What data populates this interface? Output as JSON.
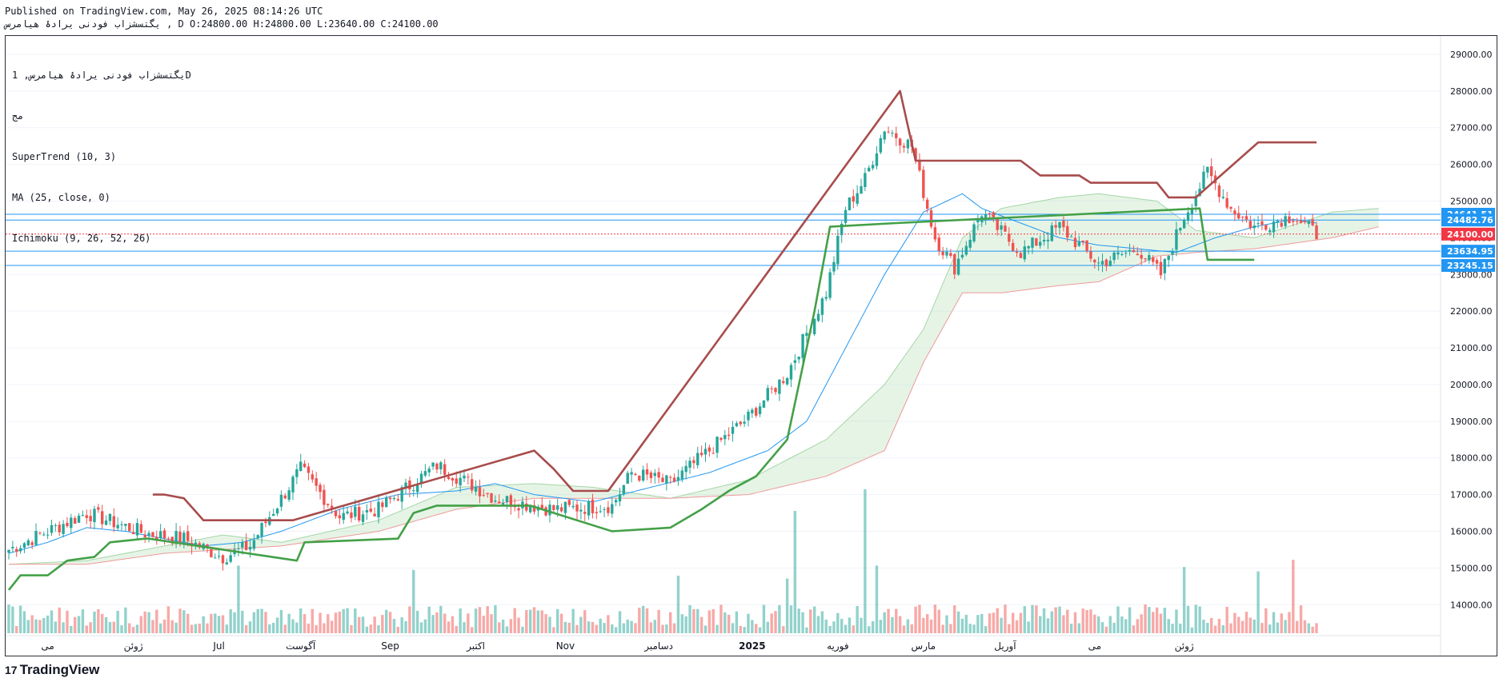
{
  "header": {
    "published": "Published on TradingView.com, May 26, 2025 08:14:26 UTC",
    "ohlc_line": "یگتسشزاب فودنی یرادۀ هیامرس , D O:24800.00 H:24800.00 L:23640.00 C:24100.00"
  },
  "legend": {
    "symbol": "یگتسشزاب فودنی یرادۀ هیامرس, 1D",
    "exchange": "مج",
    "supertrend": "SuperTrend (10, 3)",
    "ma": "MA (25, close, 0)",
    "ichimoku": "Ichimoku (9, 26, 52, 26)"
  },
  "brand": {
    "logo": "17",
    "name": "TradingView"
  },
  "colors": {
    "up": "#26a69a",
    "down": "#ef5350",
    "supertrend_up": "#43a047",
    "supertrend_down": "#a84c4c",
    "ma": "#2196f3",
    "hline": "#2196f3",
    "last_price": "#f23645",
    "cloud_bull": "#a5d6a7",
    "cloud_bear": "#ef9a9a"
  },
  "chart_data": {
    "type": "candlestick",
    "interval": "1D",
    "y_range": [
      13200,
      29500
    ],
    "y_ticks": [
      "29000.00",
      "28000.00",
      "27000.00",
      "26000.00",
      "25000.00",
      "24000.00",
      "23000.00",
      "22000.00",
      "21000.00",
      "20000.00",
      "19000.00",
      "18000.00",
      "17000.00",
      "16000.00",
      "15000.00",
      "14000.00"
    ],
    "x_labels": [
      "می",
      "ژوئن",
      "Jul",
      "آگوست",
      "Sep",
      "اکتبر",
      "Nov",
      "دسامبر",
      "2025",
      "فوریه",
      "مارس",
      "آوریل",
      "می",
      "ژوئن"
    ],
    "price_labels": [
      {
        "value": 24641.51,
        "text": "24641.51",
        "color": "#2196f3"
      },
      {
        "value": 24482.76,
        "text": "24482.76",
        "color": "#2196f3"
      },
      {
        "value": 24100.0,
        "text": "24100.00",
        "color": "#f23645"
      },
      {
        "value": 23634.95,
        "text": "23634.95",
        "color": "#2196f3"
      },
      {
        "value": 23245.15,
        "text": "23245.15",
        "color": "#2196f3"
      }
    ],
    "close_anchors": [
      [
        0,
        15500
      ],
      [
        20,
        16500
      ],
      [
        35,
        15950
      ],
      [
        45,
        15800
      ],
      [
        55,
        15300
      ],
      [
        62,
        15600
      ],
      [
        75,
        17700
      ],
      [
        85,
        16400
      ],
      [
        95,
        16600
      ],
      [
        110,
        17800
      ],
      [
        125,
        16900
      ],
      [
        140,
        16600
      ],
      [
        155,
        16700
      ],
      [
        160,
        17600
      ],
      [
        170,
        17300
      ],
      [
        180,
        18200
      ],
      [
        190,
        19100
      ],
      [
        200,
        20300
      ],
      [
        210,
        22500
      ],
      [
        215,
        24800
      ],
      [
        220,
        25600
      ],
      [
        225,
        27000
      ],
      [
        232,
        26500
      ],
      [
        238,
        24000
      ],
      [
        243,
        23200
      ],
      [
        250,
        24700
      ],
      [
        260,
        23600
      ],
      [
        270,
        24300
      ],
      [
        280,
        23300
      ],
      [
        290,
        23700
      ],
      [
        296,
        23000
      ],
      [
        302,
        24600
      ],
      [
        308,
        25800
      ],
      [
        314,
        24800
      ],
      [
        320,
        24300
      ],
      [
        330,
        24600
      ],
      [
        336,
        24100
      ]
    ],
    "volume_peaks": [
      {
        "index": 59,
        "value": 4.7
      },
      {
        "index": 104,
        "value": 4.4
      },
      {
        "index": 172,
        "value": 4.0
      },
      {
        "index": 200,
        "value": 3.8
      },
      {
        "index": 202,
        "value": 8.5
      },
      {
        "index": 220,
        "value": 10.0
      },
      {
        "index": 223,
        "value": 4.7
      },
      {
        "index": 302,
        "value": 4.6
      },
      {
        "index": 321,
        "value": 4.3
      },
      {
        "index": 330,
        "value": 5.1
      }
    ],
    "supertrend_segments": [
      {
        "trend": "up",
        "from_index": 0,
        "to_index": 36
      },
      {
        "trend": "down",
        "from_index": 37,
        "to_index": 73
      },
      {
        "trend": "up",
        "from_index": 74,
        "to_index": 134
      },
      {
        "trend": "down",
        "from_index": 135,
        "to_index": 154
      },
      {
        "trend": "up",
        "from_index": 155,
        "to_index": 228
      },
      {
        "trend": "down",
        "from_index": 229,
        "to_index": 305
      },
      {
        "trend": "up",
        "from_index": 306,
        "to_index": 320
      },
      {
        "trend": "down",
        "from_index": 321,
        "to_index": 336
      }
    ],
    "supertrend_down_path": [
      [
        37,
        17000
      ],
      [
        40,
        17000
      ],
      [
        45,
        16900
      ],
      [
        50,
        16300
      ],
      [
        73,
        16300
      ],
      [
        135,
        18200
      ],
      [
        140,
        17700
      ],
      [
        145,
        17100
      ],
      [
        154,
        17100
      ],
      [
        229,
        28000
      ],
      [
        233,
        26100
      ],
      [
        260,
        26100
      ],
      [
        265,
        25700
      ],
      [
        275,
        25700
      ],
      [
        278,
        25500
      ],
      [
        295,
        25500
      ],
      [
        298,
        25100
      ],
      [
        305,
        25100
      ],
      [
        321,
        26600
      ],
      [
        336,
        26600
      ]
    ],
    "supertrend_up_path": [
      [
        0,
        14400
      ],
      [
        3,
        14800
      ],
      [
        10,
        14800
      ],
      [
        15,
        15200
      ],
      [
        22,
        15300
      ],
      [
        26,
        15700
      ],
      [
        35,
        15800
      ],
      [
        36,
        15800
      ],
      [
        74,
        15200
      ],
      [
        76,
        15700
      ],
      [
        100,
        15800
      ],
      [
        104,
        16500
      ],
      [
        110,
        16700
      ],
      [
        134,
        16700
      ],
      [
        155,
        16000
      ],
      [
        170,
        16100
      ],
      [
        178,
        16600
      ],
      [
        185,
        17100
      ],
      [
        192,
        17500
      ],
      [
        196,
        18000
      ],
      [
        200,
        18500
      ],
      [
        204,
        20500
      ],
      [
        207,
        22000
      ],
      [
        211,
        24300
      ],
      [
        228,
        24400
      ],
      [
        306,
        24800
      ],
      [
        308,
        23400
      ],
      [
        320,
        23400
      ]
    ],
    "ma_path": [
      [
        0,
        15400
      ],
      [
        10,
        15700
      ],
      [
        20,
        16100
      ],
      [
        30,
        16000
      ],
      [
        40,
        15800
      ],
      [
        50,
        15600
      ],
      [
        60,
        15700
      ],
      [
        70,
        16000
      ],
      [
        85,
        16600
      ],
      [
        100,
        17000
      ],
      [
        115,
        17100
      ],
      [
        125,
        17300
      ],
      [
        135,
        17000
      ],
      [
        150,
        16800
      ],
      [
        165,
        17200
      ],
      [
        180,
        17600
      ],
      [
        195,
        18200
      ],
      [
        205,
        19000
      ],
      [
        215,
        21000
      ],
      [
        225,
        23000
      ],
      [
        235,
        24700
      ],
      [
        245,
        25200
      ],
      [
        250,
        24800
      ],
      [
        260,
        24400
      ],
      [
        270,
        24000
      ],
      [
        280,
        23800
      ],
      [
        290,
        23700
      ],
      [
        300,
        23600
      ],
      [
        310,
        24000
      ],
      [
        320,
        24300
      ],
      [
        330,
        24500
      ],
      [
        336,
        24400
      ]
    ],
    "cloud": {
      "span_a": [
        [
          0,
          15100
        ],
        [
          20,
          15200
        ],
        [
          40,
          15600
        ],
        [
          55,
          15900
        ],
        [
          70,
          15700
        ],
        [
          95,
          16300
        ],
        [
          115,
          17200
        ],
        [
          135,
          17300
        ],
        [
          150,
          17200
        ],
        [
          170,
          16900
        ],
        [
          190,
          17400
        ],
        [
          210,
          18500
        ],
        [
          225,
          20000
        ],
        [
          235,
          21500
        ],
        [
          245,
          24000
        ],
        [
          255,
          24800
        ],
        [
          270,
          25100
        ],
        [
          280,
          25200
        ],
        [
          295,
          25000
        ],
        [
          305,
          24200
        ],
        [
          320,
          24000
        ],
        [
          340,
          24700
        ],
        [
          352,
          24800
        ]
      ],
      "span_b": [
        [
          0,
          15100
        ],
        [
          20,
          15100
        ],
        [
          40,
          15400
        ],
        [
          55,
          15500
        ],
        [
          70,
          15600
        ],
        [
          95,
          16000
        ],
        [
          115,
          16600
        ],
        [
          135,
          16900
        ],
        [
          150,
          16900
        ],
        [
          170,
          16900
        ],
        [
          190,
          17000
        ],
        [
          210,
          17500
        ],
        [
          225,
          18200
        ],
        [
          235,
          20600
        ],
        [
          245,
          22500
        ],
        [
          255,
          22500
        ],
        [
          270,
          22700
        ],
        [
          280,
          22800
        ],
        [
          295,
          23500
        ],
        [
          305,
          23600
        ],
        [
          320,
          23700
        ],
        [
          340,
          24000
        ],
        [
          352,
          24300
        ]
      ]
    }
  }
}
